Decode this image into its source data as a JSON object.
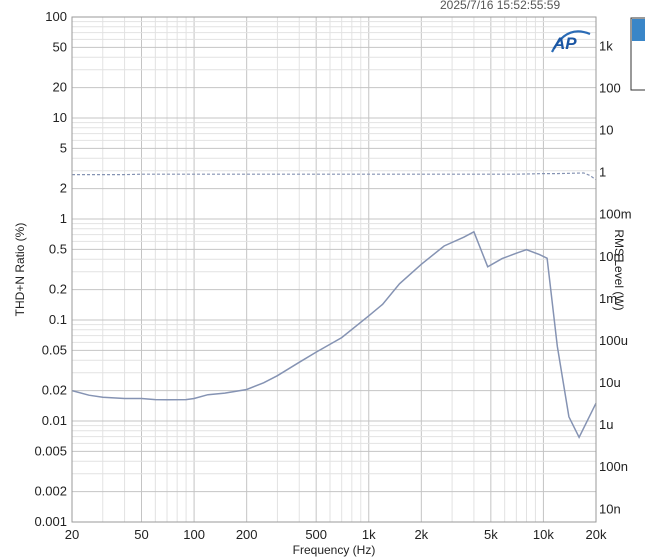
{
  "header": {
    "timestamp": "2025/7/16 15:52:55:59",
    "logo_text": "AP"
  },
  "colors": {
    "series": "#8593b3",
    "legend_accent": "#3a86c8",
    "grid_major": "#c4c4c4",
    "grid_minor": "#e2e2e2"
  },
  "chart_data": {
    "type": "line",
    "xlabel": "Frequency (Hz)",
    "ylabel": "THD+N Ratio (%)",
    "y2label": "RMS Level (W)",
    "xscale": "log",
    "yscale": "log",
    "xlim": [
      20,
      20000
    ],
    "ylim": [
      0.001,
      100
    ],
    "y2lim": [
      5e-09,
      5000
    ],
    "grid": true,
    "x_ticks": [
      {
        "value": 20,
        "label": "20"
      },
      {
        "value": 50,
        "label": "50"
      },
      {
        "value": 100,
        "label": "100"
      },
      {
        "value": 200,
        "label": "200"
      },
      {
        "value": 500,
        "label": "500"
      },
      {
        "value": 1000,
        "label": "1k"
      },
      {
        "value": 2000,
        "label": "2k"
      },
      {
        "value": 5000,
        "label": "5k"
      },
      {
        "value": 10000,
        "label": "10k"
      },
      {
        "value": 20000,
        "label": "20k"
      }
    ],
    "y_ticks": [
      {
        "value": 100,
        "label": "100"
      },
      {
        "value": 50,
        "label": "50"
      },
      {
        "value": 20,
        "label": "20"
      },
      {
        "value": 10,
        "label": "10"
      },
      {
        "value": 5,
        "label": "5"
      },
      {
        "value": 2,
        "label": "2"
      },
      {
        "value": 1,
        "label": "1"
      },
      {
        "value": 0.5,
        "label": "0.5"
      },
      {
        "value": 0.2,
        "label": "0.2"
      },
      {
        "value": 0.1,
        "label": "0.1"
      },
      {
        "value": 0.05,
        "label": "0.05"
      },
      {
        "value": 0.02,
        "label": "0.02"
      },
      {
        "value": 0.01,
        "label": "0.01"
      },
      {
        "value": 0.005,
        "label": "0.005"
      },
      {
        "value": 0.002,
        "label": "0.002"
      },
      {
        "value": 0.001,
        "label": "0.001"
      }
    ],
    "y2_ticks": [
      {
        "value": 1000,
        "label": "1k"
      },
      {
        "value": 100,
        "label": "100"
      },
      {
        "value": 10,
        "label": "10"
      },
      {
        "value": 1,
        "label": "1"
      },
      {
        "value": 0.1,
        "label": "100m"
      },
      {
        "value": 0.01,
        "label": "10m"
      },
      {
        "value": 0.001,
        "label": "1m"
      },
      {
        "value": 0.0001,
        "label": "100u"
      },
      {
        "value": 1e-05,
        "label": "10u"
      },
      {
        "value": 1e-06,
        "label": "1u"
      },
      {
        "value": 1e-07,
        "label": "100n"
      },
      {
        "value": 1e-08,
        "label": "10n"
      }
    ],
    "series": [
      {
        "axis": "left",
        "style": "solid",
        "x": [
          20,
          25,
          30,
          40,
          50,
          60,
          70,
          90,
          100,
          120,
          150,
          200,
          250,
          300,
          400,
          500,
          700,
          1000,
          1200,
          1500,
          2000,
          2700,
          3500,
          4000,
          4800,
          5800,
          7000,
          8000,
          9500,
          10500,
          12000,
          14000,
          16000,
          20000
        ],
        "y": [
          0.02,
          0.018,
          0.0172,
          0.0167,
          0.0167,
          0.0163,
          0.0162,
          0.0163,
          0.0167,
          0.0182,
          0.0189,
          0.0205,
          0.0239,
          0.0281,
          0.0381,
          0.0481,
          0.0669,
          0.11,
          0.143,
          0.228,
          0.356,
          0.54,
          0.66,
          0.747,
          0.336,
          0.405,
          0.459,
          0.497,
          0.444,
          0.409,
          0.055,
          0.011,
          0.0069,
          0.015
        ]
      },
      {
        "axis": "right",
        "style": "dashed",
        "x": [
          20,
          30,
          40,
          50,
          100,
          200,
          500,
          1000,
          2000,
          5000,
          7000,
          9000,
          10000,
          12000,
          15000,
          17000,
          18500,
          20000
        ],
        "y": [
          0.9,
          0.9,
          0.9,
          0.92,
          0.92,
          0.92,
          0.92,
          0.92,
          0.92,
          0.92,
          0.92,
          0.94,
          0.95,
          0.95,
          0.97,
          0.98,
          0.85,
          0.68
        ]
      }
    ]
  }
}
